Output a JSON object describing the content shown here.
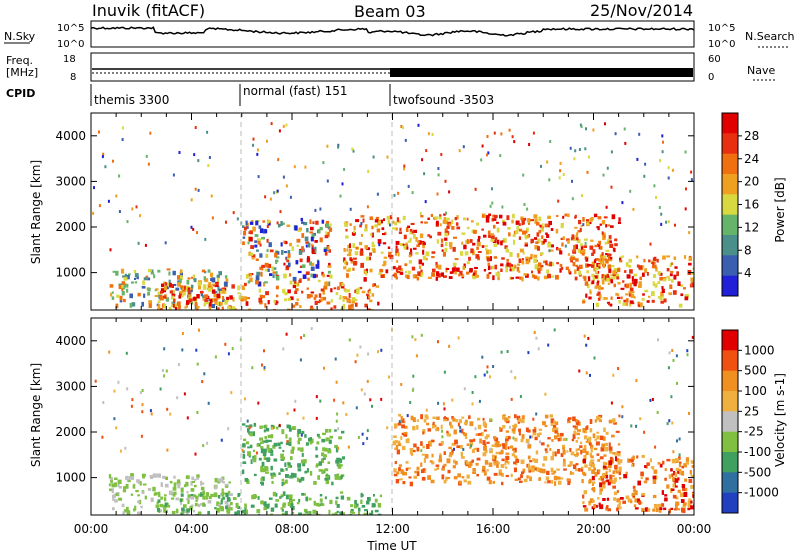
{
  "header": {
    "station": "Inuvik (fitACF)",
    "beam": "Beam 03",
    "date": "25/Nov/2014"
  },
  "strip_labels": {
    "nsky": "N.Sky",
    "nsearch": "N.Search",
    "freq": "Freq.",
    "freq_unit": "[MHz]",
    "nave": "Nave",
    "cpid": "CPID"
  },
  "strip_ticks": {
    "noise_left": [
      "10^5",
      "10^0"
    ],
    "noise_right": [
      "10^5",
      "10^0"
    ],
    "freq_left": [
      "18",
      "8"
    ],
    "nave_right": [
      "60",
      "0"
    ]
  },
  "cpid_segments": [
    {
      "label": "themis 3300",
      "start_hour": 0.0,
      "end_hour": 6.0
    },
    {
      "label": "normal (fast) 151",
      "start_hour": 6.0,
      "end_hour": 12.0
    },
    {
      "label": "twofsound -3503",
      "start_hour": 12.0,
      "end_hour": 24.0
    }
  ],
  "chart_data": [
    {
      "type": "heatmap",
      "name": "power",
      "ylabel": "Slant Range [km]",
      "xlabel": "Time UT",
      "xlim_hours": [
        0,
        24
      ],
      "ylim": [
        180,
        4500
      ],
      "yticks": [
        1000,
        2000,
        3000,
        4000
      ],
      "colorbar": {
        "label": "Power [dB]",
        "ticks": [
          "4",
          "8",
          "12",
          "16",
          "20",
          "24",
          "28"
        ],
        "colors": [
          "#2020d8",
          "#3a5fb0",
          "#4a8f8a",
          "#66b36a",
          "#d8d840",
          "#f0a020",
          "#f07010",
          "#e83010",
          "#e00000"
        ]
      },
      "echo_regions": [
        {
          "start": 0.7,
          "end": 5.5,
          "lo": 300,
          "hi": 1100,
          "level": "low-mid"
        },
        {
          "start": 2.5,
          "end": 11.5,
          "lo": 200,
          "hi": 800,
          "level": "high"
        },
        {
          "start": 6.0,
          "end": 9.5,
          "lo": 800,
          "hi": 2200,
          "level": "mixed"
        },
        {
          "start": 10.0,
          "end": 21.0,
          "lo": 900,
          "hi": 2300,
          "level": "high"
        },
        {
          "start": 19.5,
          "end": 24.0,
          "lo": 300,
          "hi": 1400,
          "level": "high"
        }
      ]
    },
    {
      "type": "heatmap",
      "name": "velocity",
      "ylabel": "Slant Range [km]",
      "xlabel": "Time UT",
      "xlim_hours": [
        0,
        24
      ],
      "ylim": [
        180,
        4500
      ],
      "yticks": [
        1000,
        2000,
        3000,
        4000
      ],
      "xticks": [
        "00:00",
        "04:00",
        "08:00",
        "12:00",
        "16:00",
        "20:00",
        "00:00"
      ],
      "colorbar": {
        "label": "Velocity [m s-1]",
        "ticks": [
          "1000",
          "500",
          "100",
          "25",
          "-25",
          "-100",
          "-500",
          "-1000"
        ],
        "colors": [
          "#2040c0",
          "#3070a0",
          "#40a060",
          "#80c040",
          "#c0c0c0",
          "#f0b040",
          "#f09020",
          "#f05010",
          "#e00000"
        ]
      },
      "echo_regions": [
        {
          "start": 0.7,
          "end": 5.5,
          "lo": 250,
          "hi": 1100,
          "level": "grey-green"
        },
        {
          "start": 2.5,
          "end": 11.5,
          "lo": 200,
          "hi": 700,
          "level": "green"
        },
        {
          "start": 6.0,
          "end": 10.0,
          "lo": 900,
          "hi": 2200,
          "level": "green"
        },
        {
          "start": 12.0,
          "end": 21.0,
          "lo": 900,
          "hi": 2400,
          "level": "orange"
        },
        {
          "start": 19.5,
          "end": 24.0,
          "lo": 300,
          "hi": 1500,
          "level": "orange-red"
        }
      ]
    }
  ],
  "colors": {
    "line": "#000000",
    "background": "#ffffff",
    "dashed": "#cccccc"
  }
}
